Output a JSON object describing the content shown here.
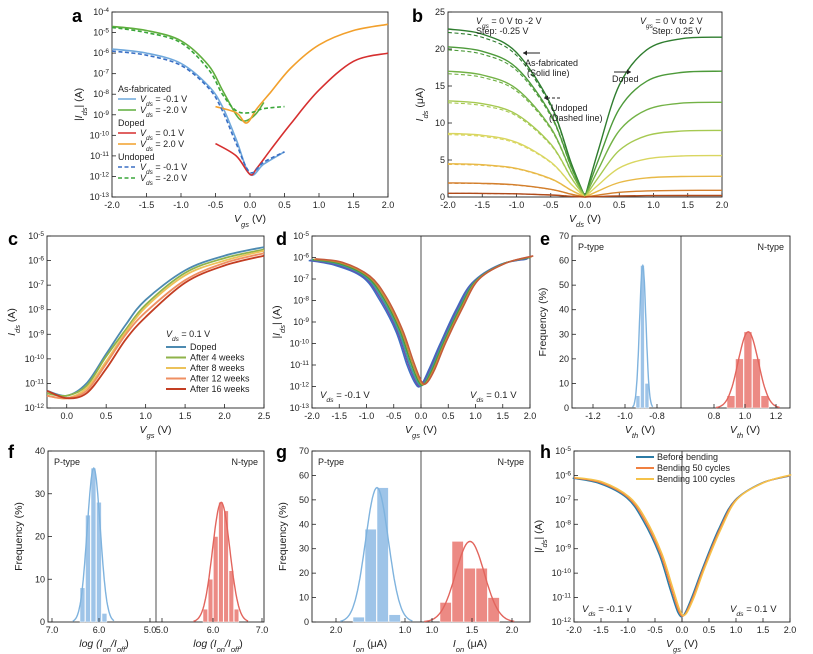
{
  "colors": {
    "as_fab_n01": "#6fa8dc",
    "as_fab_n20": "#5fae3d",
    "doped_01": "#d62f2f",
    "doped_20": "#f2a02c",
    "undoped_n01": "#3a6fc4",
    "undoped_n20": "#3aa63a",
    "c_doped": "#4d8ab0",
    "c_4w": "#8fb34a",
    "c_8w": "#ecc25a",
    "c_12w": "#ef8f62",
    "c_16w": "#c33d22",
    "hist_p": "#9ec4e8",
    "fit_p": "#7fb3de",
    "hist_n": "#ec8a84",
    "fit_n": "#e2655d",
    "h_before": "#2b7ba6",
    "h_50": "#f08040",
    "h_100": "#f5c24a"
  },
  "panels": {
    "a": {
      "letter": "a",
      "xlabel_main": "V",
      "xlabel_sub": "gs",
      "xlabel_tail": " (V)",
      "ylabel_main": "|I",
      "ylabel_sub": "ds",
      "ylabel_tail": "| (A)",
      "legend_asfab": "As-fabricated",
      "legend_doped": "Doped",
      "legend_undoped": "Undoped",
      "leg_vds": "V",
      "leg_vds_sub": "ds",
      "leg_a1": " = -0.1 V",
      "leg_a2": " = -2.0 V",
      "leg_d1": " = 0.1 V",
      "leg_d2": " = 2.0 V",
      "leg_u1": " = -0.1 V",
      "leg_u2": " = -2.0 V"
    },
    "b": {
      "letter": "b",
      "xlabel_main": "V",
      "xlabel_sub": "ds",
      "xlabel_tail": " (V)",
      "ylabel_main": "I",
      "ylabel_sub": "ds",
      "ylabel_tail": " (μA)",
      "ann_left_1": " = 0 V to -2 V",
      "ann_left_2": "Step: -0.25 V",
      "ann_right_1": " = 0 V to 2 V",
      "ann_right_2": "Step: 0.25 V",
      "ann_vgs": "V",
      "ann_vgs_sub": "gs",
      "asfab_1": "As-fabricated",
      "asfab_2": "(Solid line)",
      "undoped_1": "Undoped",
      "undoped_2": "(Dashed line)",
      "doped": "Doped"
    },
    "c": {
      "letter": "c",
      "xlabel_main": "V",
      "xlabel_sub": "gs",
      "xlabel_tail": " (V)",
      "ylabel_main": "I",
      "ylabel_sub": "ds",
      "ylabel_tail": " (A)",
      "leg_title": " = 0.1 V",
      "leg_v": "V",
      "leg_v_sub": "ds",
      "legend": [
        "Doped",
        "After  4  weeks",
        "After  8  weeks",
        "After 12 weeks",
        "After 16 weeks"
      ]
    },
    "d": {
      "letter": "d",
      "xlabel_main": "V",
      "xlabel_sub": "gs",
      "xlabel_tail": " (V)",
      "ylabel_main": "|I",
      "ylabel_sub": "ds",
      "ylabel_tail": "| (A)",
      "ann_l": " = -0.1 V",
      "ann_r": " = 0.1 V",
      "ann_v": "V",
      "ann_v_sub": "ds"
    },
    "e": {
      "letter": "e",
      "left_label": "P-type",
      "right_label": "N-type",
      "ylabel": "Frequency (%)",
      "xlabel_main": "V",
      "xlabel_sub": "th",
      "xlabel_tail": " (V)"
    },
    "f": {
      "letter": "f",
      "left_label": "P-type",
      "right_label": "N-type",
      "ylabel": "Frequency (%)",
      "xlabel": "log (I",
      "xlabel_on": "on",
      "xlabel_mid": "/I",
      "xlabel_off": "off",
      "xlabel_end": ")"
    },
    "g": {
      "letter": "g",
      "left_label": "P-type",
      "right_label": "N-type",
      "ylabel": "Frequency (%)",
      "xlabel_main": "I",
      "xlabel_sub": "on",
      "xlabel_tail": " (μA)"
    },
    "h": {
      "letter": "h",
      "xlabel_main": "V",
      "xlabel_sub": "gs",
      "xlabel_tail": " (V)",
      "ylabel_main": "|I",
      "ylabel_sub": "ds",
      "ylabel_tail": "| (A)",
      "ann_l": " = -0.1 V",
      "ann_r": " = 0.1 V",
      "ann_v": "V",
      "ann_v_sub": "ds",
      "legend": [
        "Before bending",
        "Bending 50 cycles",
        "Bending 100 cycles"
      ]
    }
  },
  "chart_data": [
    {
      "panel": "a",
      "type": "line",
      "xlim": [
        -2.0,
        2.0
      ],
      "xticks": [
        "-2.0",
        "-1.5",
        "-1.0",
        "-0.5",
        "0.0",
        "0.5",
        "1.0",
        "1.5",
        "2.0"
      ],
      "ylim_log10": [
        -13,
        -4
      ],
      "yticks": [
        "10⁻¹³",
        "10⁻¹²",
        "10⁻¹¹",
        "10⁻¹⁰",
        "10⁻⁹",
        "10⁻⁸",
        "10⁻⁷",
        "10⁻⁶",
        "10⁻⁵",
        "10⁻⁴"
      ],
      "scale": "log",
      "series": [
        {
          "name": "As-fabricated V_ds = -0.1 V",
          "x": [
            -2,
            -1.5,
            -1,
            -0.6,
            -0.4,
            -0.2,
            0,
            0.2,
            0.5
          ],
          "y_log10": [
            -5.8,
            -6.0,
            -6.5,
            -7.6,
            -8.6,
            -10.2,
            -11.9,
            -11.4,
            -10.8
          ]
        },
        {
          "name": "As-fabricated V_ds = -2.0 V",
          "x": [
            -2,
            -1.5,
            -1,
            -0.6,
            -0.4,
            -0.2,
            -0.1,
            0,
            0.1,
            0.2
          ],
          "y_log10": [
            -4.7,
            -4.9,
            -5.4,
            -6.6,
            -7.8,
            -9.0,
            -9.3,
            -9.2,
            -8.9,
            -8.4
          ]
        },
        {
          "name": "Doped V_ds = 0.1 V",
          "x": [
            -0.5,
            -0.2,
            0,
            0.1,
            0.3,
            0.6,
            1.0,
            1.5,
            2.0
          ],
          "y_log10": [
            -10.4,
            -11.0,
            -11.9,
            -11.6,
            -10.7,
            -9.4,
            -7.8,
            -6.4,
            -6.0
          ]
        },
        {
          "name": "Doped V_ds = 2.0 V",
          "x": [
            -0.5,
            -0.2,
            -0.05,
            0.1,
            0.3,
            0.6,
            1.0,
            1.5,
            2.0
          ],
          "y_log10": [
            -8.6,
            -8.9,
            -9.4,
            -8.7,
            -7.9,
            -6.7,
            -5.6,
            -4.9,
            -4.6
          ]
        },
        {
          "name": "Undoped V_ds = -0.1 V",
          "x": [
            -2,
            -1.5,
            -1,
            -0.6,
            -0.4,
            -0.2,
            0,
            0.2,
            0.5
          ],
          "y_log10": [
            -5.9,
            -6.1,
            -6.6,
            -7.7,
            -8.8,
            -10.4,
            -11.8,
            -11.3,
            -10.8
          ]
        },
        {
          "name": "Undoped V_ds = -2.0 V",
          "x": [
            -2,
            -1.5,
            -1,
            -0.6,
            -0.4,
            -0.2,
            0,
            0.2,
            0.5
          ],
          "y_log10": [
            -4.75,
            -5.0,
            -5.5,
            -6.8,
            -8.0,
            -8.8,
            -8.9,
            -8.7,
            -8.6
          ]
        }
      ]
    },
    {
      "panel": "b",
      "type": "line",
      "xlim": [
        -2.0,
        2.0
      ],
      "xticks": [
        "-2.0",
        "-1.5",
        "-1.0",
        "-0.5",
        "0.0",
        "0.5",
        "1.0",
        "1.5",
        "2.0"
      ],
      "ylim": [
        0,
        25
      ],
      "yticks": [
        "0",
        "5",
        "10",
        "15",
        "20",
        "25"
      ],
      "p_curves_at_minus2": [
        22.7,
        20.3,
        17.0,
        13.0,
        8.6,
        4.5,
        1.9,
        0.5
      ],
      "n_curves_sat": [
        21.6,
        17.0,
        12.8,
        9.0,
        5.6,
        2.8,
        0.9,
        0.2
      ]
    },
    {
      "panel": "c",
      "type": "line",
      "scale": "log",
      "xlim": [
        -0.25,
        2.5
      ],
      "xticks": [
        "0.0",
        "0.5",
        "1.0",
        "1.5",
        "2.0",
        "2.5"
      ],
      "ylim_log10": [
        -12,
        -5
      ],
      "yticks": [
        "10⁻¹²",
        "10⁻¹¹",
        "10⁻¹⁰",
        "10⁻⁹",
        "10⁻⁸",
        "10⁻⁷",
        "10⁻⁶",
        "10⁻⁵"
      ],
      "series": [
        {
          "name": "Doped",
          "x": [
            -0.25,
            0,
            0.25,
            0.5,
            0.75,
            1.0,
            1.5,
            2.0,
            2.5
          ],
          "y_log10": [
            -11.3,
            -11.5,
            -11.0,
            -9.8,
            -8.6,
            -7.6,
            -6.4,
            -5.8,
            -5.45
          ]
        },
        {
          "name": "After 4 weeks",
          "x": [
            -0.25,
            0,
            0.25,
            0.5,
            0.75,
            1.0,
            1.5,
            2.0,
            2.5
          ],
          "y_log10": [
            -11.4,
            -11.5,
            -11.1,
            -9.9,
            -8.8,
            -7.8,
            -6.5,
            -5.9,
            -5.55
          ]
        },
        {
          "name": "After 8 weeks",
          "x": [
            -0.25,
            0,
            0.25,
            0.5,
            0.75,
            1.0,
            1.5,
            2.0,
            2.5
          ],
          "y_log10": [
            -11.5,
            -11.6,
            -11.2,
            -10.1,
            -8.9,
            -7.9,
            -6.6,
            -6.0,
            -5.6
          ]
        },
        {
          "name": "After 12 weeks",
          "x": [
            -0.25,
            0,
            0.25,
            0.5,
            0.75,
            1.0,
            1.5,
            2.0,
            2.5
          ],
          "y_log10": [
            -11.5,
            -11.6,
            -11.3,
            -10.2,
            -9.0,
            -8.1,
            -6.8,
            -6.1,
            -5.7
          ]
        },
        {
          "name": "After 16 weeks",
          "x": [
            -0.25,
            0,
            0.25,
            0.5,
            0.75,
            1.0,
            1.5,
            2.0,
            2.5
          ],
          "y_log10": [
            -11.3,
            -11.6,
            -11.4,
            -10.4,
            -9.2,
            -8.3,
            -6.9,
            -6.2,
            -5.8
          ]
        }
      ]
    },
    {
      "panel": "d",
      "type": "line",
      "scale": "log",
      "xlim": [
        -2.0,
        2.0
      ],
      "xticks": [
        "-2.0",
        "-1.5",
        "-1.0",
        "-0.5",
        "0.0",
        "0.5",
        "1.0",
        "1.5",
        "2.0"
      ],
      "ylim_log10": [
        -13,
        -5
      ],
      "yticks": [
        "10⁻¹³",
        "10⁻¹²",
        "10⁻¹¹",
        "10⁻¹⁰",
        "10⁻⁹",
        "10⁻⁸",
        "10⁻⁷",
        "10⁻⁶",
        "10⁻⁵"
      ],
      "curve_x": [
        -2,
        -1.5,
        -1,
        -0.7,
        -0.4,
        -0.2,
        -0.05,
        0.05,
        0.2,
        0.4,
        0.7,
        1.0,
        1.5,
        2.0
      ],
      "curve_y_log10": [
        -6.1,
        -6.3,
        -6.9,
        -7.9,
        -9.4,
        -10.9,
        -11.8,
        -11.9,
        -11.2,
        -10.0,
        -8.4,
        -7.1,
        -6.3,
        -6.0
      ]
    },
    {
      "panel": "e",
      "type": "bar",
      "xlim": [
        -1.3,
        1.3
      ],
      "xticks": [
        "-1.2",
        "-1.0",
        "-0.8",
        "0.8",
        "1.0",
        "1.2"
      ],
      "ylim": [
        0,
        70
      ],
      "yticks": [
        "0",
        "10",
        "20",
        "30",
        "40",
        "50",
        "60",
        "70"
      ],
      "p_bins": [
        -0.96,
        -0.94,
        -0.92
      ],
      "p_freq": [
        5,
        58,
        10
      ],
      "n_bins": [
        0.9,
        0.95,
        1.0,
        1.05,
        1.1
      ],
      "n_freq": [
        5,
        20,
        31,
        20,
        5
      ]
    },
    {
      "panel": "f",
      "type": "bar",
      "xticks_left": [
        "7.0",
        "6.0",
        "5.0"
      ],
      "xticks_right": [
        "5.0",
        "6.0",
        "7.0"
      ],
      "ylim": [
        0,
        40
      ],
      "yticks": [
        "0",
        "10",
        "20",
        "30",
        "40"
      ],
      "p_freq": [
        8,
        25,
        36,
        28,
        2
      ],
      "n_freq": [
        3,
        10,
        20,
        28,
        26,
        12,
        3
      ]
    },
    {
      "panel": "g",
      "type": "bar",
      "xticks_left": [
        "2.0",
        "1.0"
      ],
      "xticks_right": [
        "1.0",
        "1.5",
        "2.0"
      ],
      "ylim": [
        0,
        70
      ],
      "yticks": [
        "0",
        "10",
        "20",
        "30",
        "40",
        "50",
        "60",
        "70"
      ],
      "p_freq": [
        2,
        38,
        55,
        3
      ],
      "n_freq": [
        8,
        33,
        22,
        22,
        10
      ]
    },
    {
      "panel": "h",
      "type": "line",
      "scale": "log",
      "xlim": [
        -2.0,
        2.0
      ],
      "xticks": [
        "-2.0",
        "-1.5",
        "-1.0",
        "-0.5",
        "0.0",
        "0.5",
        "1.0",
        "1.5",
        "2.0"
      ],
      "ylim_log10": [
        -12,
        -5
      ],
      "yticks": [
        "10⁻¹²",
        "10⁻¹¹",
        "10⁻¹⁰",
        "10⁻⁹",
        "10⁻⁸",
        "10⁻⁷",
        "10⁻⁶",
        "10⁻⁵"
      ],
      "curve_x": [
        -2,
        -1.5,
        -1,
        -0.7,
        -0.4,
        -0.2,
        -0.05,
        0.05,
        0.2,
        0.4,
        0.7,
        1.0,
        1.5,
        2.0
      ],
      "curve_y_log10": [
        -6.1,
        -6.3,
        -6.9,
        -7.8,
        -9.2,
        -10.6,
        -11.6,
        -11.7,
        -11.0,
        -9.8,
        -8.2,
        -7.0,
        -6.3,
        -6.0
      ]
    }
  ]
}
